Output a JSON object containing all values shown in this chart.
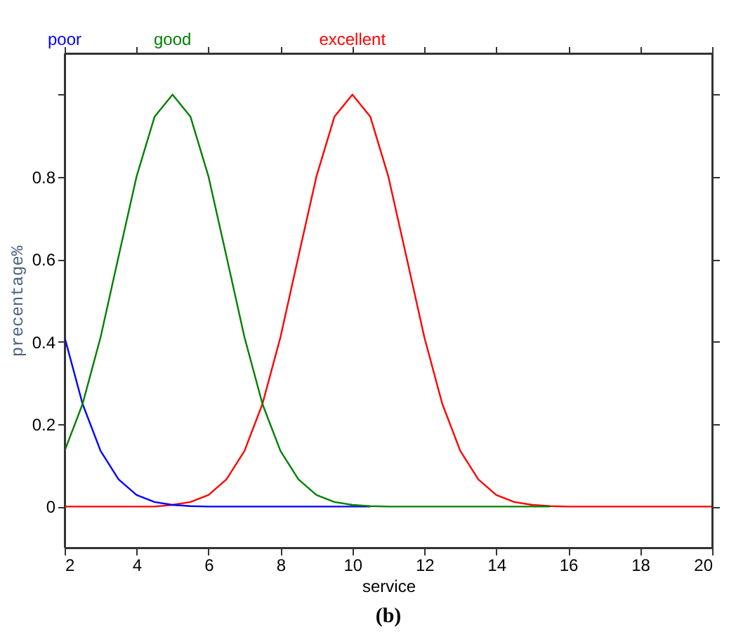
{
  "chart_data": {
    "type": "line",
    "xlabel": "service",
    "ylabel": "precentage%",
    "x": [
      2,
      2.5,
      3,
      3.5,
      4,
      4.5,
      5,
      5.5,
      6,
      6.5,
      7,
      7.5,
      8,
      8.5,
      9,
      9.5,
      10,
      10.5,
      11,
      11.5,
      12,
      12.5,
      13,
      13.5,
      14,
      14.5,
      15,
      15.5,
      16,
      16.5,
      17,
      17.5,
      18,
      18.5,
      19,
      19.5,
      20
    ],
    "series": [
      {
        "name": "excellent",
        "color": "#ff0000",
        "values": [
          0,
          0,
          0,
          0,
          0,
          0,
          0.004,
          0.011,
          0.028,
          0.066,
          0.135,
          0.249,
          0.411,
          0.607,
          0.801,
          0.946,
          1,
          0.946,
          0.801,
          0.607,
          0.411,
          0.249,
          0.135,
          0.066,
          0.028,
          0.011,
          0.004,
          0.001,
          0,
          0,
          0,
          0,
          0,
          0,
          0,
          0,
          0
        ]
      },
      {
        "name": "poor",
        "color": "#0000ff",
        "values": [
          0.411,
          0.249,
          0.135,
          0.066,
          0.028,
          0.011,
          0.004,
          0.001,
          0,
          0,
          0,
          0,
          0,
          0,
          0,
          0,
          0,
          0,
          null,
          null,
          null,
          null,
          null,
          null,
          null,
          null,
          null,
          null,
          null,
          null,
          null,
          null,
          null,
          null,
          null,
          null,
          null
        ]
      },
      {
        "name": "good",
        "color": "#008000",
        "values": [
          0.135,
          0.249,
          0.411,
          0.607,
          0.801,
          0.946,
          1,
          0.946,
          0.801,
          0.607,
          0.411,
          0.249,
          0.135,
          0.066,
          0.028,
          0.011,
          0.004,
          0.001,
          0,
          0,
          0,
          0,
          0,
          0,
          0,
          0,
          0,
          0,
          null,
          null,
          null,
          null,
          null,
          null,
          null,
          null,
          null
        ]
      }
    ],
    "xlim": [
      2,
      20
    ],
    "xticks": [
      2,
      4,
      6,
      8,
      10,
      12,
      14,
      16,
      18,
      20
    ],
    "ylim": [
      -0.1,
      1.1
    ],
    "yticks": [
      0,
      0.2,
      0.4,
      0.6,
      0.8,
      {
        "value": 1,
        "label": null
      }
    ],
    "annotations": [
      "(b)"
    ],
    "grid": false,
    "legend": false,
    "marker": "none",
    "line_style": "solid"
  }
}
